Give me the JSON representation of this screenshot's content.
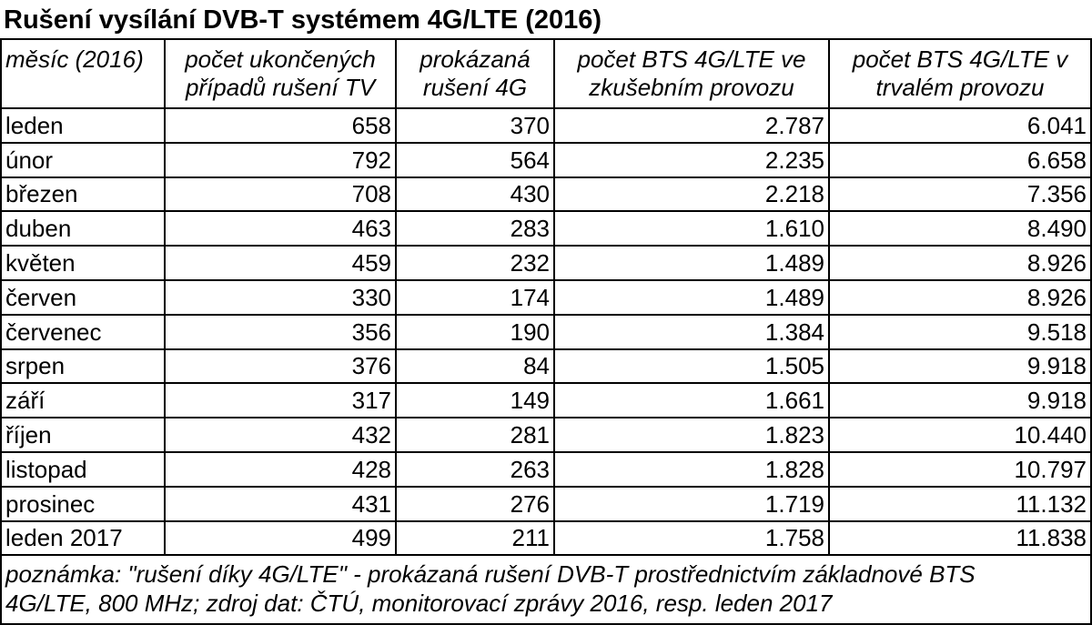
{
  "title": "Rušení vysílání DVB-T systémem 4G/LTE (2016)",
  "headers": [
    {
      "line1": "měsíc (2016)",
      "line2": ""
    },
    {
      "line1": "počet ukončených",
      "line2": "případů rušení TV"
    },
    {
      "line1": "prokázaná",
      "line2": "rušení 4G"
    },
    {
      "line1": "počet BTS 4G/LTE ve",
      "line2": "zkušebním provozu"
    },
    {
      "line1": "počet BTS 4G/LTE v",
      "line2": "trvalém provozu"
    }
  ],
  "rows": [
    {
      "month": "leden",
      "cases": "658",
      "proven": "370",
      "trial": "2.787",
      "permanent": "6.041"
    },
    {
      "month": "únor",
      "cases": "792",
      "proven": "564",
      "trial": "2.235",
      "permanent": "6.658"
    },
    {
      "month": "březen",
      "cases": "708",
      "proven": "430",
      "trial": "2.218",
      "permanent": "7.356"
    },
    {
      "month": "duben",
      "cases": "463",
      "proven": "283",
      "trial": "1.610",
      "permanent": "8.490"
    },
    {
      "month": "květen",
      "cases": "459",
      "proven": "232",
      "trial": "1.489",
      "permanent": "8.926"
    },
    {
      "month": "červen",
      "cases": "330",
      "proven": "174",
      "trial": "1.489",
      "permanent": "8.926"
    },
    {
      "month": "červenec",
      "cases": "356",
      "proven": "190",
      "trial": "1.384",
      "permanent": "9.518"
    },
    {
      "month": "srpen",
      "cases": "376",
      "proven": "84",
      "trial": "1.505",
      "permanent": "9.918"
    },
    {
      "month": "září",
      "cases": "317",
      "proven": "149",
      "trial": "1.661",
      "permanent": "9.918"
    },
    {
      "month": "říjen",
      "cases": "432",
      "proven": "281",
      "trial": "1.823",
      "permanent": "10.440"
    },
    {
      "month": "listopad",
      "cases": "428",
      "proven": "263",
      "trial": "1.828",
      "permanent": "10.797"
    },
    {
      "month": "prosinec",
      "cases": "431",
      "proven": "276",
      "trial": "1.719",
      "permanent": "11.132"
    },
    {
      "month": "leden 2017",
      "cases": "499",
      "proven": "211",
      "trial": "1.758",
      "permanent": "11.838"
    }
  ],
  "note": {
    "line1": "poznámka: \"rušení díky 4G/LTE\" - prokázaná rušení DVB-T prostřednictvím základnové BTS",
    "line2": "4G/LTE, 800 MHz; zdroj dat: ČTÚ,  monitorovací zprávy 2016, resp. leden 2017"
  }
}
